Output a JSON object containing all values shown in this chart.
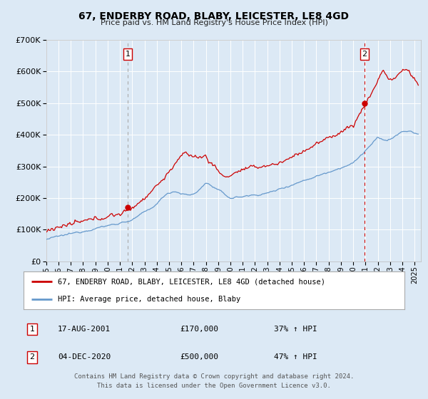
{
  "title": "67, ENDERBY ROAD, BLABY, LEICESTER, LE8 4GD",
  "subtitle": "Price paid vs. HM Land Registry's House Price Index (HPI)",
  "bg_color": "#dce9f5",
  "plot_bg_color": "#dce9f5",
  "red_color": "#cc0000",
  "blue_color": "#6699cc",
  "grid_color": "#ffffff",
  "sale1_date": 2001.63,
  "sale1_price": 170000,
  "sale2_date": 2020.92,
  "sale2_price": 500000,
  "xmin": 1995.0,
  "xmax": 2025.5,
  "ymin": 0,
  "ymax": 700000,
  "legend_line1": "67, ENDERBY ROAD, BLABY, LEICESTER, LE8 4GD (detached house)",
  "legend_line2": "HPI: Average price, detached house, Blaby",
  "table_row1_date": "17-AUG-2001",
  "table_row1_price": "£170,000",
  "table_row1_hpi": "37% ↑ HPI",
  "table_row2_date": "04-DEC-2020",
  "table_row2_price": "£500,000",
  "table_row2_hpi": "47% ↑ HPI",
  "footer": "Contains HM Land Registry data © Crown copyright and database right 2024.\nThis data is licensed under the Open Government Licence v3.0.",
  "xticks": [
    1995,
    1996,
    1997,
    1998,
    1999,
    2000,
    2001,
    2002,
    2003,
    2004,
    2005,
    2006,
    2007,
    2008,
    2009,
    2010,
    2011,
    2012,
    2013,
    2014,
    2015,
    2016,
    2017,
    2018,
    2019,
    2020,
    2021,
    2022,
    2023,
    2024,
    2025
  ],
  "yticks": [
    0,
    100000,
    200000,
    300000,
    400000,
    500000,
    600000,
    700000
  ]
}
